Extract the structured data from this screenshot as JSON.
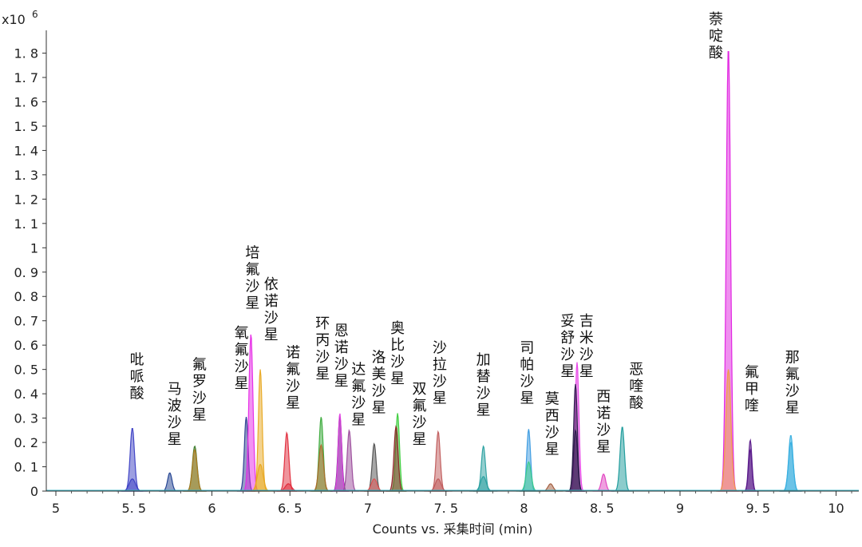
{
  "chart_data": {
    "type": "area",
    "title": "",
    "xlabel": "Counts  vs.  采集时间 (min)",
    "ylabel": "",
    "y_multiplier_label": "x10",
    "y_multiplier_exp": "6",
    "xlim": [
      4.95,
      10.2
    ],
    "ylim": [
      0,
      1.9
    ],
    "x_ticks": [
      5,
      5.5,
      6,
      6.5,
      7,
      7.5,
      8,
      8.5,
      9,
      9.5,
      10
    ],
    "x_tick_labels": [
      "5",
      "5. 5",
      "6",
      "6. 5",
      "7",
      "7. 5",
      "8",
      "8. 5",
      "9",
      "9. 5",
      "10"
    ],
    "y_ticks": [
      0,
      0.1,
      0.2,
      0.3,
      0.4,
      0.5,
      0.6,
      0.7,
      0.8,
      0.9,
      1,
      1.1,
      1.2,
      1.3,
      1.4,
      1.5,
      1.6,
      1.7,
      1.8
    ],
    "y_tick_labels": [
      "0",
      "0. 1",
      "0. 2",
      "0. 3",
      "0. 4",
      "0. 5",
      "0. 6",
      "0. 7",
      "0. 8",
      "0. 9",
      "1",
      "1. 1",
      "1. 2",
      "1. 3",
      "1. 4",
      "1. 5",
      "1. 6",
      "1. 7",
      "1. 8"
    ],
    "grid": false,
    "series": [
      {
        "name": "吡哌酸",
        "color": "#3b3fc4",
        "peaks": [
          {
            "x": 5.49,
            "h": 0.26,
            "w": 0.014
          },
          {
            "x": 5.49,
            "h": 0.05,
            "w": 0.02
          }
        ]
      },
      {
        "name": "马波沙星",
        "color": "#1f3f8f",
        "peaks": [
          {
            "x": 5.73,
            "h": 0.075,
            "w": 0.014
          }
        ]
      },
      {
        "name": "氟罗沙星",
        "color": "#3a7a2a",
        "peaks": [
          {
            "x": 5.89,
            "h": 0.185,
            "w": 0.015
          }
        ]
      },
      {
        "name": "氟罗沙星-2",
        "color": "#b07a20",
        "peaks": [
          {
            "x": 5.89,
            "h": 0.17,
            "w": 0.015
          }
        ]
      },
      {
        "name": "氧氟沙星",
        "color": "#2a3d8f",
        "peaks": [
          {
            "x": 6.22,
            "h": 0.305,
            "w": 0.012
          }
        ]
      },
      {
        "name": "培氟沙星",
        "color": "#e628e6",
        "peaks": [
          {
            "x": 6.25,
            "h": 0.645,
            "w": 0.013
          }
        ]
      },
      {
        "name": "依诺沙星",
        "color": "#e8a820",
        "peaks": [
          {
            "x": 6.31,
            "h": 0.5,
            "w": 0.012
          },
          {
            "x": 6.31,
            "h": 0.11,
            "w": 0.018
          }
        ]
      },
      {
        "name": "诺氟沙星",
        "color": "#e02a3a",
        "peaks": [
          {
            "x": 6.48,
            "h": 0.24,
            "w": 0.013
          },
          {
            "x": 6.49,
            "h": 0.03,
            "w": 0.02
          }
        ]
      },
      {
        "name": "环丙沙星",
        "color": "#3aaa3a",
        "peaks": [
          {
            "x": 6.7,
            "h": 0.305,
            "w": 0.013
          }
        ]
      },
      {
        "name": "环丙沙星-2",
        "color": "#b06a2a",
        "peaks": [
          {
            "x": 6.7,
            "h": 0.19,
            "w": 0.015
          }
        ]
      },
      {
        "name": "恩诺沙星",
        "color": "#2a1a5a",
        "peaks": [
          {
            "x": 6.82,
            "h": 0.305,
            "w": 0.012
          }
        ]
      },
      {
        "name": "恩诺沙星-2",
        "color": "#e040e0",
        "peaks": [
          {
            "x": 6.82,
            "h": 0.32,
            "w": 0.011
          }
        ]
      },
      {
        "name": "达氟沙星",
        "color": "#9a4a9a",
        "peaks": [
          {
            "x": 6.88,
            "h": 0.25,
            "w": 0.013
          }
        ]
      },
      {
        "name": "洛美沙星",
        "color": "#505050",
        "peaks": [
          {
            "x": 7.04,
            "h": 0.195,
            "w": 0.013
          }
        ]
      },
      {
        "name": "洛美沙星-2",
        "color": "#e05050",
        "peaks": [
          {
            "x": 7.04,
            "h": 0.05,
            "w": 0.018
          }
        ]
      },
      {
        "name": "奥比沙星",
        "color": "#3acc3a",
        "peaks": [
          {
            "x": 7.19,
            "h": 0.32,
            "w": 0.012
          }
        ]
      },
      {
        "name": "双氟沙星",
        "color": "#8a2020",
        "peaks": [
          {
            "x": 7.18,
            "h": 0.265,
            "w": 0.013
          }
        ]
      },
      {
        "name": "沙拉沙星",
        "color": "#c05a5a",
        "peaks": [
          {
            "x": 7.45,
            "h": 0.245,
            "w": 0.013
          },
          {
            "x": 7.45,
            "h": 0.05,
            "w": 0.018
          }
        ]
      },
      {
        "name": "加替沙星",
        "color": "#2aa0a0",
        "peaks": [
          {
            "x": 7.74,
            "h": 0.185,
            "w": 0.013
          },
          {
            "x": 7.74,
            "h": 0.06,
            "w": 0.018
          }
        ]
      },
      {
        "name": "司帕沙星",
        "color": "#3a9ae0",
        "peaks": [
          {
            "x": 8.03,
            "h": 0.255,
            "w": 0.012
          }
        ]
      },
      {
        "name": "司帕沙星-2",
        "color": "#3acc8a",
        "peaks": [
          {
            "x": 8.03,
            "h": 0.12,
            "w": 0.016
          }
        ]
      },
      {
        "name": "莫西沙星",
        "color": "#a05a3a",
        "peaks": [
          {
            "x": 8.17,
            "h": 0.03,
            "w": 0.016
          }
        ]
      },
      {
        "name": "妥舒沙星",
        "color": "#e640e6",
        "peaks": [
          {
            "x": 8.34,
            "h": 0.53,
            "w": 0.012
          }
        ]
      },
      {
        "name": "吉米沙星",
        "color": "#2a1a4a",
        "peaks": [
          {
            "x": 8.33,
            "h": 0.44,
            "w": 0.012
          },
          {
            "x": 8.33,
            "h": 0.25,
            "w": 0.013
          }
        ]
      },
      {
        "name": "西诺沙星",
        "color": "#e040c0",
        "peaks": [
          {
            "x": 8.51,
            "h": 0.07,
            "w": 0.014
          }
        ]
      },
      {
        "name": "恶喹酸",
        "color": "#1a9a9a",
        "peaks": [
          {
            "x": 8.63,
            "h": 0.265,
            "w": 0.014
          }
        ]
      },
      {
        "name": "萘啶酸",
        "color": "#e020e0",
        "peaks": [
          {
            "x": 9.31,
            "h": 1.825,
            "w": 0.014
          }
        ]
      },
      {
        "name": "萘啶酸-2",
        "color": "#f0a040",
        "peaks": [
          {
            "x": 9.31,
            "h": 0.5,
            "w": 0.016
          }
        ]
      },
      {
        "name": "氟甲喹",
        "color": "#5a1a8a",
        "peaks": [
          {
            "x": 9.45,
            "h": 0.21,
            "w": 0.011
          },
          {
            "x": 9.45,
            "h": 0.17,
            "w": 0.011
          }
        ]
      },
      {
        "name": "那氟沙星",
        "color": "#3ab0e0",
        "peaks": [
          {
            "x": 9.71,
            "h": 0.23,
            "w": 0.014
          },
          {
            "x": 9.71,
            "h": 0.2,
            "w": 0.015
          }
        ]
      }
    ],
    "annotations": [
      {
        "text": "吡哌酸",
        "x": 5.52,
        "y": 0.52
      },
      {
        "text": "马波沙星",
        "x": 5.76,
        "y": 0.4
      },
      {
        "text": "氟罗沙星",
        "x": 5.92,
        "y": 0.5
      },
      {
        "text": "氧氟沙星",
        "x": 6.19,
        "y": 0.63
      },
      {
        "text": "培氟沙星",
        "x": 6.26,
        "y": 0.96
      },
      {
        "text": "依诺沙星",
        "x": 6.38,
        "y": 0.83
      },
      {
        "text": "诺氟沙星",
        "x": 6.52,
        "y": 0.55
      },
      {
        "text": "环丙沙星",
        "x": 6.71,
        "y": 0.67
      },
      {
        "text": "恩诺沙星",
        "x": 6.83,
        "y": 0.64
      },
      {
        "text": "达氟沙星",
        "x": 6.94,
        "y": 0.48
      },
      {
        "text": "洛美沙星",
        "x": 7.07,
        "y": 0.53
      },
      {
        "text": "奥比沙星",
        "x": 7.19,
        "y": 0.65
      },
      {
        "text": "双氟沙星",
        "x": 7.33,
        "y": 0.4
      },
      {
        "text": "沙拉沙星",
        "x": 7.46,
        "y": 0.57
      },
      {
        "text": "加替沙星",
        "x": 7.74,
        "y": 0.52
      },
      {
        "text": "司帕沙星",
        "x": 8.02,
        "y": 0.57
      },
      {
        "text": "莫西沙星",
        "x": 8.18,
        "y": 0.36
      },
      {
        "text": "妥舒沙星",
        "x": 8.28,
        "y": 0.68
      },
      {
        "text": "吉米沙星",
        "x": 8.4,
        "y": 0.68
      },
      {
        "text": "西诺沙星",
        "x": 8.51,
        "y": 0.37
      },
      {
        "text": "恶喹酸",
        "x": 8.72,
        "y": 0.48
      },
      {
        "text": "萘啶酸",
        "x": 9.23,
        "y": 1.92
      },
      {
        "text": "氟甲喹",
        "x": 9.46,
        "y": 0.47
      },
      {
        "text": "那氟沙星",
        "x": 9.72,
        "y": 0.53
      }
    ]
  }
}
